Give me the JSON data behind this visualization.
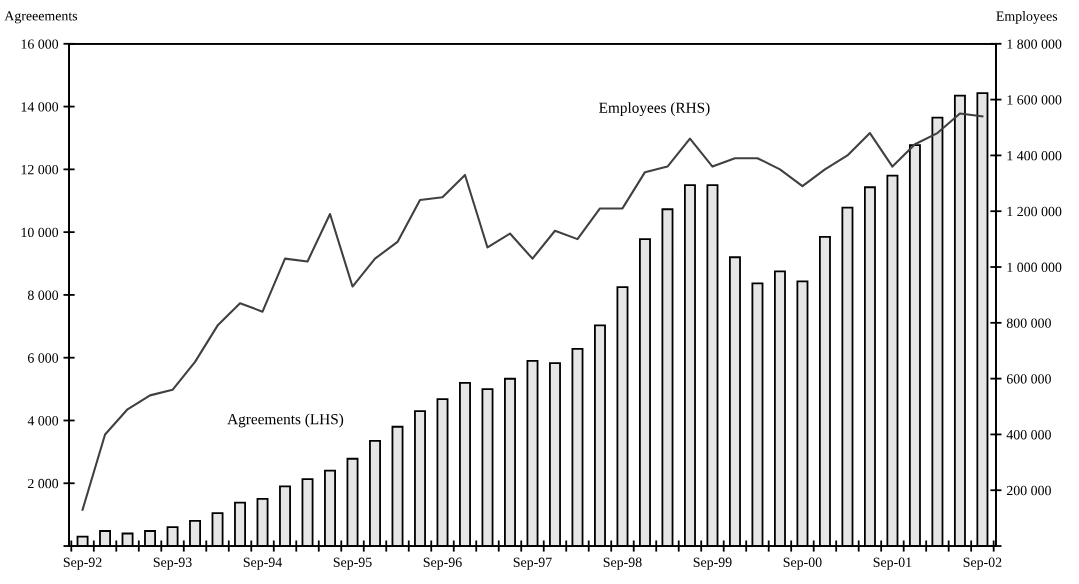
{
  "chart_data": {
    "type": "bar",
    "ylabel": "Agreeements",
    "y2label": "Employees",
    "categories": [
      "Sep-92",
      null,
      null,
      null,
      "Sep-93",
      null,
      null,
      null,
      "Sep-94",
      null,
      null,
      null,
      "Sep-95",
      null,
      null,
      null,
      "Sep-96",
      null,
      null,
      null,
      "Sep-97",
      null,
      null,
      null,
      "Sep-98",
      null,
      null,
      null,
      "Sep-99",
      null,
      null,
      null,
      "Sep-00",
      null,
      null,
      null,
      "Sep-01",
      null,
      null,
      null,
      "Sep-02"
    ],
    "series": [
      {
        "name": "Agreements (LHS)",
        "color": "#e6e6e6",
        "values": [
          300,
          480,
          400,
          480,
          600,
          800,
          1050,
          1380,
          1500,
          1900,
          2130,
          2400,
          2780,
          3350,
          3800,
          4300,
          4680,
          5200,
          5000,
          5330,
          5900,
          5830,
          6280,
          7030,
          8250,
          9780,
          10730,
          11500,
          11500,
          9200,
          8370,
          8750,
          8430,
          9850,
          10780,
          11430,
          11800,
          12770,
          13650,
          14350,
          14430
        ]
      },
      {
        "name": "Employees (RHS)",
        "type": "line",
        "axis": "y2",
        "color": "#404040",
        "values": [
          130000,
          400000,
          490000,
          540000,
          560000,
          660000,
          790000,
          870000,
          840000,
          1030000,
          1020000,
          1190000,
          930000,
          1030000,
          1090000,
          1240000,
          1250000,
          1330000,
          1070000,
          1120000,
          1030000,
          1130000,
          1100000,
          1210000,
          1210000,
          1340000,
          1360000,
          1460000,
          1360000,
          1390000,
          1390000,
          1350000,
          1290000,
          1350000,
          1400000,
          1480000,
          1360000,
          1440000,
          1480000,
          1550000,
          1540000
        ]
      }
    ],
    "ylim": [
      0,
      16000
    ],
    "yticks": [
      {
        "value": 0,
        "label": null
      },
      {
        "value": 2000,
        "label": "2 000"
      },
      {
        "value": 4000,
        "label": "4 000"
      },
      {
        "value": 6000,
        "label": "6 000"
      },
      {
        "value": 8000,
        "label": "8 000"
      },
      {
        "value": 10000,
        "label": "10 000"
      },
      {
        "value": 12000,
        "label": "12 000"
      },
      {
        "value": 14000,
        "label": "14 000"
      },
      {
        "value": 16000,
        "label": "16 000"
      }
    ],
    "y2lim": [
      0,
      1800000
    ],
    "y2ticks": [
      {
        "value": 0,
        "label": null
      },
      {
        "value": 200000,
        "label": "200 000"
      },
      {
        "value": 400000,
        "label": "400 000"
      },
      {
        "value": 600000,
        "label": "600 000"
      },
      {
        "value": 800000,
        "label": "800 000"
      },
      {
        "value": 1000000,
        "label": "1 000 000"
      },
      {
        "value": 1200000,
        "label": "1 200 000"
      },
      {
        "value": 1400000,
        "label": "1 400 000"
      },
      {
        "value": 1600000,
        "label": "1 600 000"
      },
      {
        "value": 1800000,
        "label": "1 800 000"
      }
    ],
    "grid": false,
    "legend": false
  }
}
